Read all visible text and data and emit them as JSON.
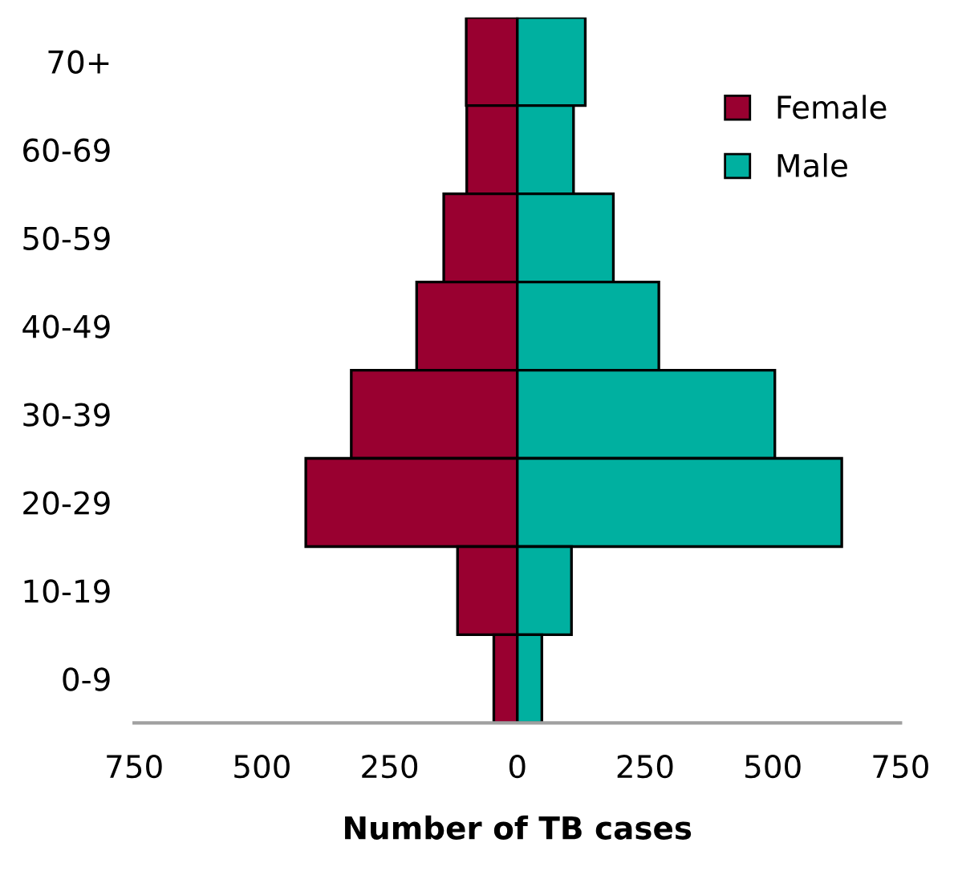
{
  "chart_data": {
    "type": "bar",
    "orientation": "horizontal",
    "stacked": true,
    "xlabel": "Number of TB cases",
    "categories": [
      "70+",
      "60-69",
      "50-59",
      "40-49",
      "30-39",
      "20-29",
      "10-19",
      "0-9"
    ],
    "series": [
      {
        "name": "Female",
        "color": "#990030",
        "values": [
          -100,
          -99,
          -144,
          -197,
          -325,
          -414,
          -117,
          -46
        ]
      },
      {
        "name": "Male",
        "color": "#00b0a0",
        "values": [
          133,
          110,
          188,
          277,
          504,
          635,
          106,
          48
        ]
      }
    ],
    "xlim": [
      -750,
      750
    ],
    "xticks": [
      {
        "value": -750,
        "label": "750"
      },
      {
        "value": -500,
        "label": "500"
      },
      {
        "value": -250,
        "label": "250"
      },
      0,
      250,
      500,
      750
    ],
    "grid": false,
    "legend": "top right"
  }
}
